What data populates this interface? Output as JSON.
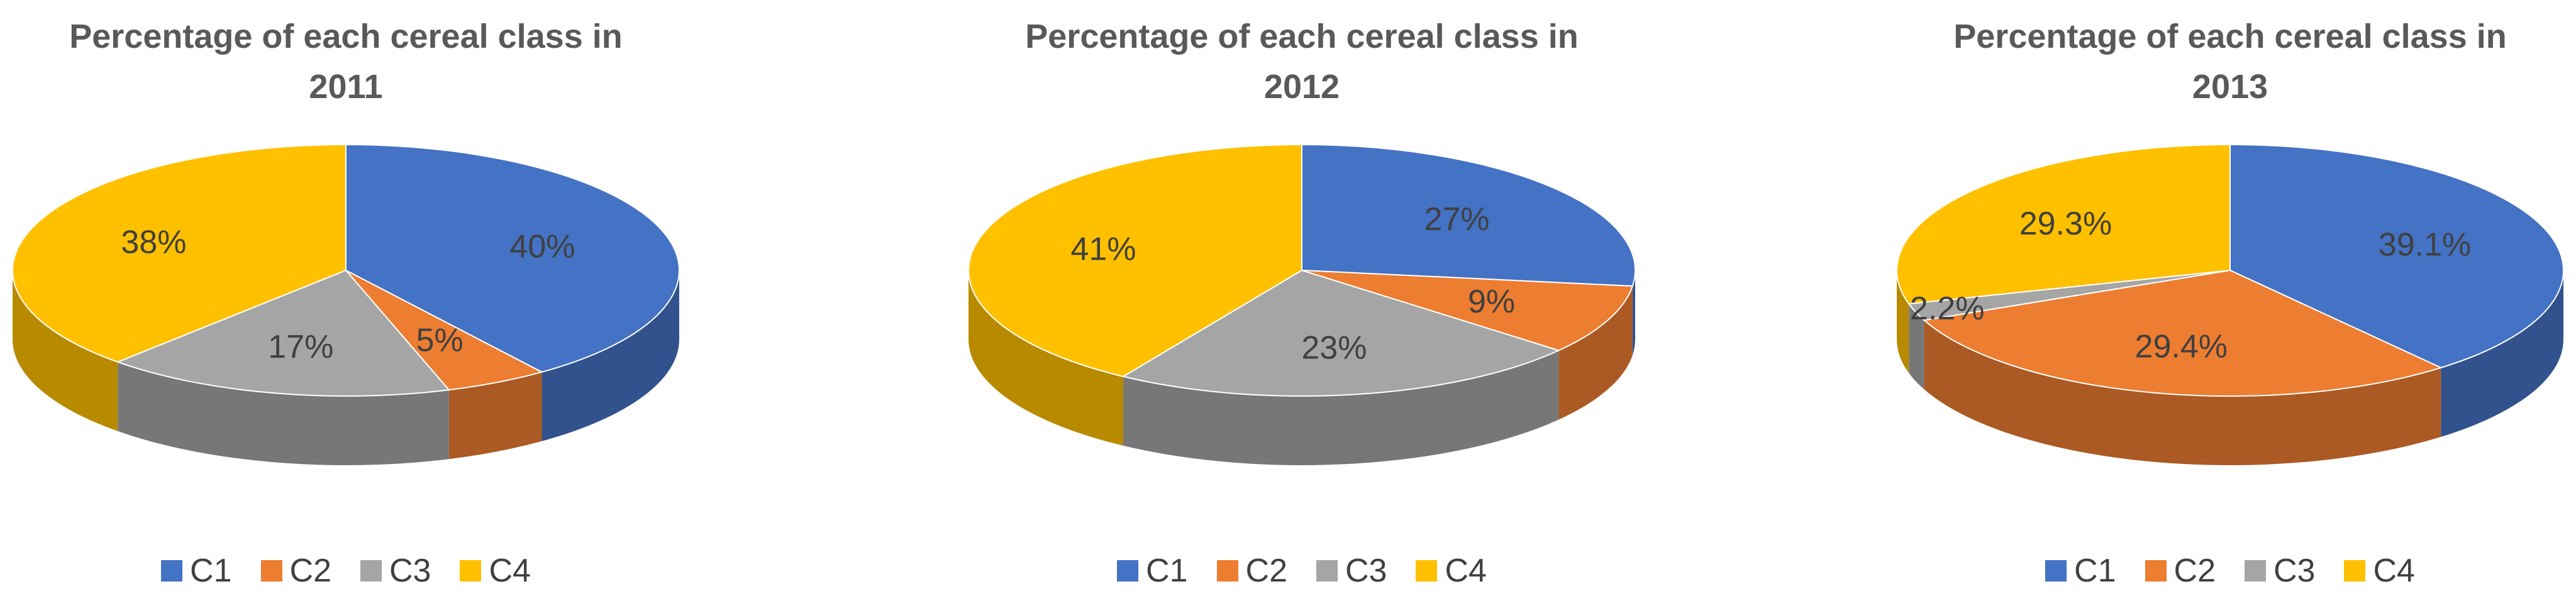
{
  "colors": {
    "C1": "#4472C4",
    "C2": "#ED7D31",
    "C3": "#A5A5A5",
    "C4": "#FFC000"
  },
  "chart_data": [
    {
      "type": "pie",
      "title": "Percentage of each cereal class in 2011",
      "title_lines": [
        "Percentage of each cereal class in",
        "2011"
      ],
      "categories": [
        "C1",
        "C2",
        "C3",
        "C4"
      ],
      "values": [
        40,
        5,
        17,
        38
      ],
      "labels": [
        "40%",
        "5%",
        "17%",
        "38%"
      ],
      "legend": "bottom",
      "style": "3d"
    },
    {
      "type": "pie",
      "title": "Percentage of each cereal class in 2012",
      "title_lines": [
        "Percentage of each cereal class in",
        "2012"
      ],
      "categories": [
        "C1",
        "C2",
        "C3",
        "C4"
      ],
      "values": [
        27,
        9,
        23,
        41
      ],
      "labels": [
        "27%",
        "9%",
        "23%",
        "41%"
      ],
      "legend": "bottom",
      "style": "3d"
    },
    {
      "type": "pie",
      "title": "Percentage of each cereal class in 2013",
      "title_lines": [
        "Percentage of each cereal class in",
        "2013"
      ],
      "categories": [
        "C1",
        "C2",
        "C3",
        "C4"
      ],
      "values": [
        39.1,
        29.4,
        2.2,
        29.3
      ],
      "labels": [
        "39.1%",
        "29.4%",
        "2.2%",
        "29.3%"
      ],
      "legend": "bottom",
      "style": "3d"
    }
  ]
}
